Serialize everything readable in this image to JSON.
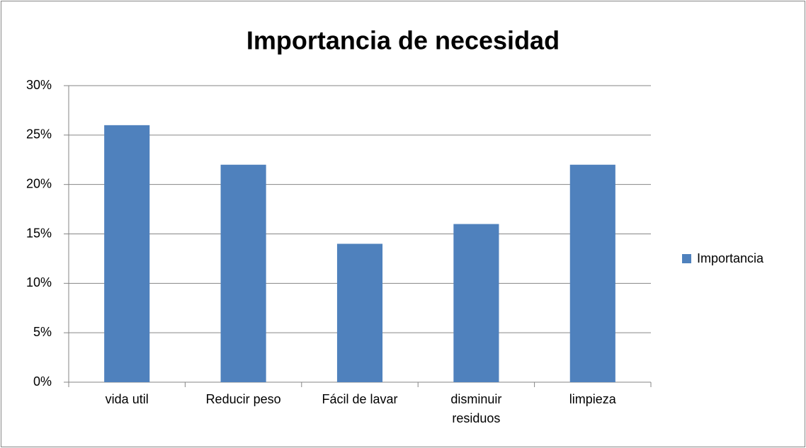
{
  "chart_data": {
    "type": "bar",
    "title": "Importancia de necesidad",
    "categories": [
      "vida util",
      "Reducir peso",
      "Fácil de lavar",
      "disminuir residuos",
      "limpieza"
    ],
    "series": [
      {
        "name": "Importancia",
        "color": "#4f81bd",
        "values": [
          26,
          22,
          14,
          16,
          22
        ]
      }
    ],
    "ylim": [
      0,
      30
    ],
    "yticks": [
      {
        "value": 0,
        "label": "0%"
      },
      {
        "value": 5,
        "label": "5%"
      },
      {
        "value": 10,
        "label": "10%"
      },
      {
        "value": 15,
        "label": "15%"
      },
      {
        "value": 20,
        "label": "20%"
      },
      {
        "value": 25,
        "label": "25%"
      },
      {
        "value": 30,
        "label": "30%"
      }
    ],
    "grid": true,
    "legend": "right"
  }
}
